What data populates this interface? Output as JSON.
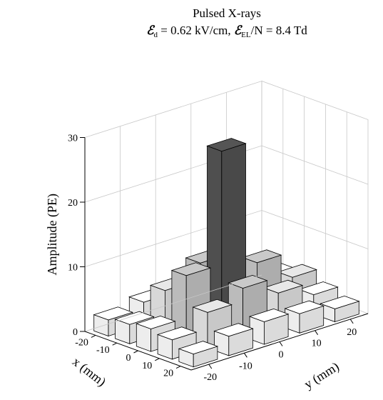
{
  "chart_data": {
    "type": "bar3d",
    "title_line1": "Pulsed X-rays",
    "title_line2": {
      "e1": "ℰ",
      "sub1": "d",
      "mid": " = 0.62 kV/cm, ",
      "e2": "ℰ",
      "sub2": "EL",
      "tail": "/N = 8.4 Td"
    },
    "zlabel": "Amplitude (PE)",
    "xlabel": "x (mm)",
    "ylabel": "y (mm)",
    "zlim": [
      0,
      30
    ],
    "zticks": [
      "0",
      "10",
      "20",
      "30"
    ],
    "xticks": [
      "-20",
      "-10",
      "0",
      "10",
      "20"
    ],
    "yticks": [
      "-20",
      "-10",
      "0",
      "10",
      "20"
    ],
    "x": [
      -20,
      -10,
      0,
      10,
      20
    ],
    "y": [
      -20,
      -10,
      0,
      10,
      20
    ],
    "values": [
      [
        3.0,
        3.5,
        4.5,
        3.0,
        2.0
      ],
      [
        3.5,
        6.0,
        8.5,
        5.0,
        3.0
      ],
      [
        4.0,
        9.0,
        27.5,
        7.5,
        3.5
      ],
      [
        3.5,
        6.5,
        10.0,
        5.5,
        3.0
      ],
      [
        2.5,
        3.0,
        3.5,
        3.0,
        2.0
      ]
    ],
    "colors": {
      "peak": "#555555",
      "high": "#c9c9c9",
      "mid": "#e8e8e8",
      "low": "#ffffff",
      "edge": "#000000"
    }
  }
}
